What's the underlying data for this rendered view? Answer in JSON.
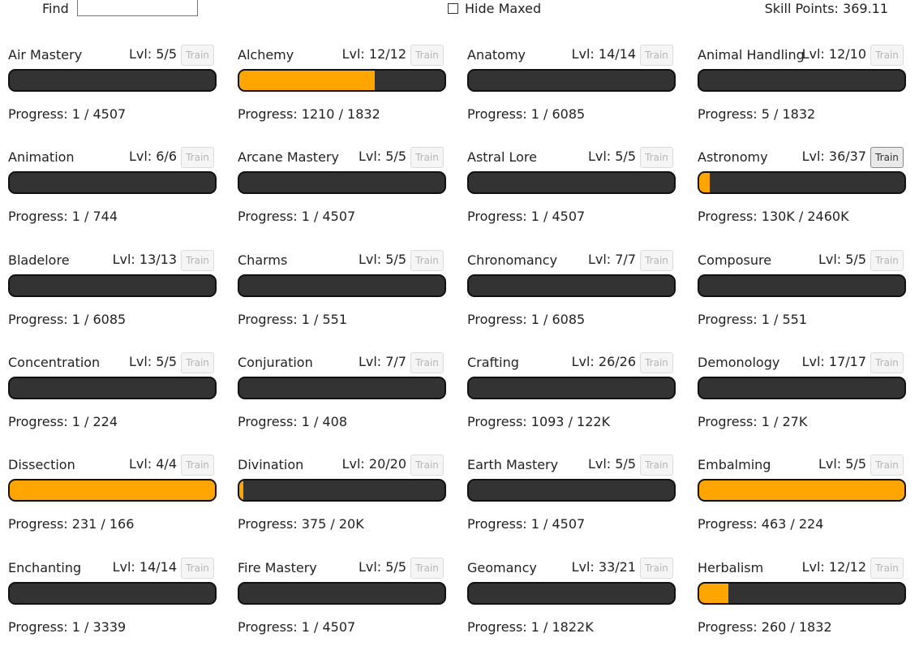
{
  "header": {
    "find_label": "Find",
    "find_value": "",
    "hide_maxed_label": "Hide Maxed",
    "hide_maxed_checked": false,
    "skill_points": "Skill Points: 369.11"
  },
  "colors": {
    "bar_track": "#333333",
    "bar_fill": "#ffa500",
    "bar_border": "#111111"
  },
  "skills": [
    {
      "name": "Air Mastery",
      "lvl": "Lvl: 5/5",
      "train": "Train",
      "train_enabled": false,
      "progress": "Progress: 1 / 4507",
      "fill": 0.0
    },
    {
      "name": "Alchemy",
      "lvl": "Lvl: 12/12",
      "train": "Train",
      "train_enabled": false,
      "progress": "Progress: 1210 / 1832",
      "fill": 0.66
    },
    {
      "name": "Anatomy",
      "lvl": "Lvl: 14/14",
      "train": "Train",
      "train_enabled": false,
      "progress": "Progress: 1 / 6085",
      "fill": 0.0
    },
    {
      "name": "Animal Handling",
      "lvl": "Lvl: 12/10",
      "train": "Train",
      "train_enabled": false,
      "progress": "Progress: 5 / 1832",
      "fill": 0.0
    },
    {
      "name": "Animation",
      "lvl": "Lvl: 6/6",
      "train": "Train",
      "train_enabled": false,
      "progress": "Progress: 1 / 744",
      "fill": 0.0
    },
    {
      "name": "Arcane Mastery",
      "lvl": "Lvl: 5/5",
      "train": "Train",
      "train_enabled": false,
      "progress": "Progress: 1 / 4507",
      "fill": 0.0
    },
    {
      "name": "Astral Lore",
      "lvl": "Lvl: 5/5",
      "train": "Train",
      "train_enabled": false,
      "progress": "Progress: 1 / 4507",
      "fill": 0.0
    },
    {
      "name": "Astronomy",
      "lvl": "Lvl: 36/37",
      "train": "Train",
      "train_enabled": true,
      "progress": "Progress: 130K / 2460K",
      "fill": 0.053
    },
    {
      "name": "Bladelore",
      "lvl": "Lvl: 13/13",
      "train": "Train",
      "train_enabled": false,
      "progress": "Progress: 1 / 6085",
      "fill": 0.0
    },
    {
      "name": "Charms",
      "lvl": "Lvl: 5/5",
      "train": "Train",
      "train_enabled": false,
      "progress": "Progress: 1 / 551",
      "fill": 0.0
    },
    {
      "name": "Chronomancy",
      "lvl": "Lvl: 7/7",
      "train": "Train",
      "train_enabled": false,
      "progress": "Progress: 1 / 6085",
      "fill": 0.0
    },
    {
      "name": "Composure",
      "lvl": "Lvl: 5/5",
      "train": "Train",
      "train_enabled": false,
      "progress": "Progress: 1 / 551",
      "fill": 0.0
    },
    {
      "name": "Concentration",
      "lvl": "Lvl: 5/5",
      "train": "Train",
      "train_enabled": false,
      "progress": "Progress: 1 / 224",
      "fill": 0.0
    },
    {
      "name": "Conjuration",
      "lvl": "Lvl: 7/7",
      "train": "Train",
      "train_enabled": false,
      "progress": "Progress: 1 / 408",
      "fill": 0.0
    },
    {
      "name": "Crafting",
      "lvl": "Lvl: 26/26",
      "train": "Train",
      "train_enabled": false,
      "progress": "Progress: 1093 / 122K",
      "fill": 0.0
    },
    {
      "name": "Demonology",
      "lvl": "Lvl: 17/17",
      "train": "Train",
      "train_enabled": false,
      "progress": "Progress: 1 / 27K",
      "fill": 0.0
    },
    {
      "name": "Dissection",
      "lvl": "Lvl: 4/4",
      "train": "Train",
      "train_enabled": false,
      "progress": "Progress: 231 / 166",
      "fill": 1.0
    },
    {
      "name": "Divination",
      "lvl": "Lvl: 20/20",
      "train": "Train",
      "train_enabled": false,
      "progress": "Progress: 375 / 20K",
      "fill": 0.019
    },
    {
      "name": "Earth Mastery",
      "lvl": "Lvl: 5/5",
      "train": "Train",
      "train_enabled": false,
      "progress": "Progress: 1 / 4507",
      "fill": 0.0
    },
    {
      "name": "Embalming",
      "lvl": "Lvl: 5/5",
      "train": "Train",
      "train_enabled": false,
      "progress": "Progress: 463 / 224",
      "fill": 1.0
    },
    {
      "name": "Enchanting",
      "lvl": "Lvl: 14/14",
      "train": "Train",
      "train_enabled": false,
      "progress": "Progress: 1 / 3339",
      "fill": 0.0
    },
    {
      "name": "Fire Mastery",
      "lvl": "Lvl: 5/5",
      "train": "Train",
      "train_enabled": false,
      "progress": "Progress: 1 / 4507",
      "fill": 0.0
    },
    {
      "name": "Geomancy",
      "lvl": "Lvl: 33/21",
      "train": "Train",
      "train_enabled": false,
      "progress": "Progress: 1 / 1822K",
      "fill": 0.0
    },
    {
      "name": "Herbalism",
      "lvl": "Lvl: 12/12",
      "train": "Train",
      "train_enabled": false,
      "progress": "Progress: 260 / 1832",
      "fill": 0.142
    }
  ]
}
